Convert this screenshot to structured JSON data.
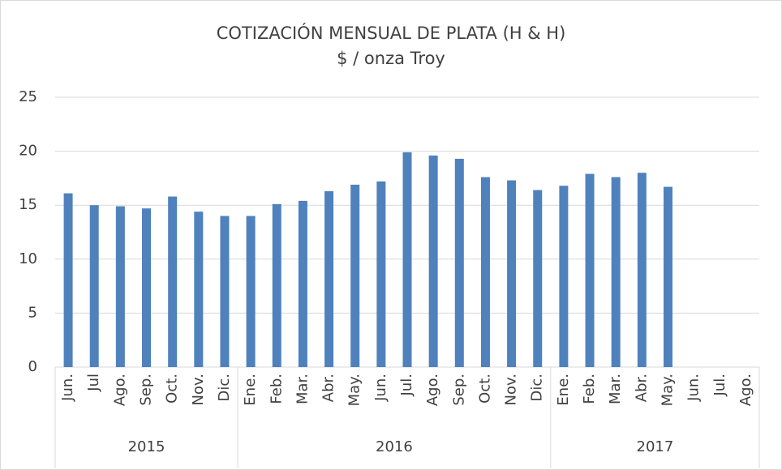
{
  "chart_data": {
    "type": "bar",
    "title": "COTIZACIÓN MENSUAL DE PLATA (H & H)",
    "subtitle": "$ / onza Troy",
    "color": "#4f81bd",
    "grid": true,
    "ylim": [
      0,
      25
    ],
    "yticks": [
      0,
      5,
      10,
      15,
      20,
      25
    ],
    "groups": [
      {
        "name": "2015",
        "categories": [
          "Jun.",
          "Jul",
          "Ago.",
          "Sep.",
          "Oct.",
          "Nov.",
          "Dic."
        ],
        "values": [
          16.1,
          15.0,
          14.9,
          14.7,
          15.8,
          14.4,
          14.0
        ]
      },
      {
        "name": "2016",
        "categories": [
          "Ene.",
          "Feb.",
          "Mar.",
          "Abr.",
          "May.",
          "Jun.",
          "Jul.",
          "Ago.",
          "Sep.",
          "Oct.",
          "Nov.",
          "Dic."
        ],
        "values": [
          14.0,
          15.1,
          15.4,
          16.3,
          16.9,
          17.2,
          19.9,
          19.6,
          19.3,
          17.6,
          17.3,
          16.4
        ]
      },
      {
        "name": "2017",
        "categories": [
          "Ene.",
          "Feb.",
          "Mar.",
          "Abr.",
          "May.",
          "Jun.",
          "Jul.",
          "Ago."
        ],
        "values": [
          16.8,
          17.9,
          17.6,
          18.0,
          16.7,
          null,
          null,
          null
        ]
      }
    ]
  }
}
